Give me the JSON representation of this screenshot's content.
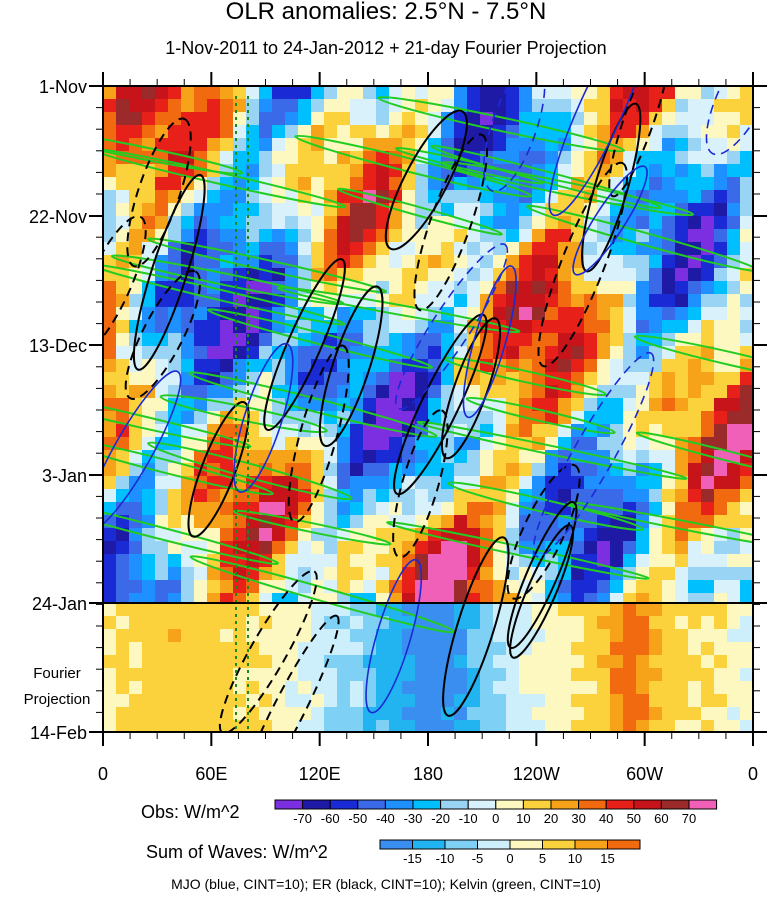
{
  "chart_data": {
    "type": "heatmap",
    "title": "OLR anomalies: 2.5°N - 7.5°N",
    "subtitle": "1-Nov-2011 to 24-Jan-2012 + 21-day Fourier Projection",
    "x_ticks": [
      "0",
      "60E",
      "120E",
      "180",
      "120W",
      "60W",
      "0"
    ],
    "x_range_deg": [
      0,
      360
    ],
    "y_ticks": [
      "1-Nov",
      "22-Nov",
      "13-Dec",
      "3-Jan",
      "24-Jan",
      "14-Feb"
    ],
    "projection_label_lines": [
      "Fourier",
      "Projection"
    ],
    "obs_colorbar": {
      "label": "Obs: W/m^2",
      "levels": [
        "-70",
        "-60",
        "-50",
        "-40",
        "-30",
        "-20",
        "-10",
        "0",
        "10",
        "20",
        "30",
        "40",
        "50",
        "60",
        "70"
      ],
      "colors": [
        "#7b2fe0",
        "#1f1aa6",
        "#1a2ad4",
        "#3a6ae8",
        "#1e90ff",
        "#00bfff",
        "#9ad4f5",
        "#d8f1fb",
        "#fdf7c0",
        "#fcd23c",
        "#f7a319",
        "#f26a10",
        "#e8201a",
        "#c6141a",
        "#9b2a2a",
        "#f05fb8"
      ]
    },
    "waves_colorbar": {
      "label": "Sum of Waves: W/m^2",
      "levels": [
        "-15",
        "-10",
        "-5",
        "0",
        "5",
        "10",
        "15"
      ],
      "colors": [
        "#3a8ef0",
        "#22b4f0",
        "#7fd0f5",
        "#cdeefb",
        "#fdf7c0",
        "#fcd23c",
        "#f7a319",
        "#f26a10"
      ]
    },
    "footer": "MJO (blue, CINT=10); ER (black, CINT=10); Kelvin (green, CINT=10)",
    "overlay_contours": [
      {
        "name": "MJO",
        "color": "#1a2ad4",
        "interval": 10
      },
      {
        "name": "ER",
        "color": "#000000",
        "interval": 10
      },
      {
        "name": "Kelvin",
        "color": "#22cc22",
        "interval": 10
      }
    ]
  }
}
